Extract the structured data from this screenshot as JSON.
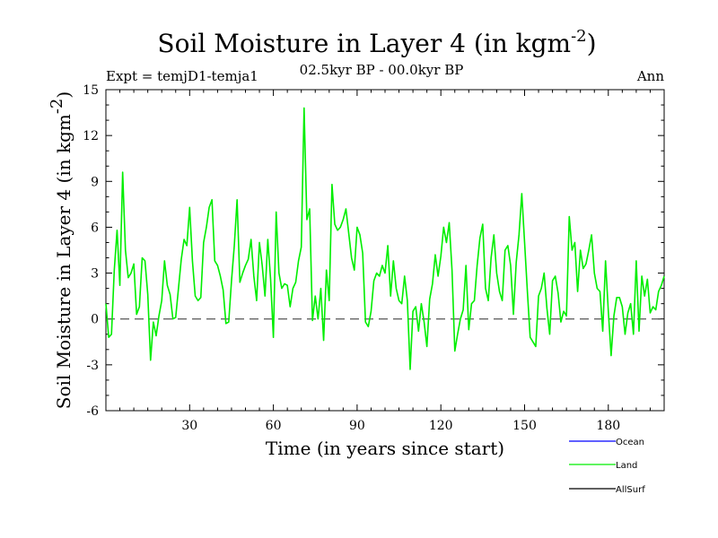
{
  "chart_data": {
    "type": "line",
    "title": "Soil Moisture in Layer 4 (in kgm",
    "title_sup": "-2",
    "title_close": ")",
    "experiment": "Expt = temjD1-temja1",
    "period": "02.5kyr BP - 00.0kyr BP",
    "season": "Ann",
    "xlabel": "Time (in years since start)",
    "ylabel": "Soil Moisture in Layer 4 (in kgm",
    "ylabel_sup": "-2",
    "ylabel_close": ")",
    "xlim": [
      0,
      200
    ],
    "ylim": [
      -6,
      15
    ],
    "xticks": [
      30,
      60,
      90,
      120,
      150,
      180
    ],
    "yticks": [
      -6,
      -3,
      0,
      3,
      6,
      9,
      12,
      15
    ],
    "zero_line": 0,
    "legend": [
      {
        "name": "Ocean",
        "color": "#0000ff"
      },
      {
        "name": "Land",
        "color": "#00ee00"
      },
      {
        "name": "AllSurf",
        "color": "#000000"
      }
    ],
    "series": [
      {
        "name": "Land",
        "color": "#00ee00",
        "x": [
          0,
          1,
          2,
          3,
          4,
          5,
          6,
          7,
          8,
          9,
          10,
          11,
          12,
          13,
          14,
          15,
          16,
          17,
          18,
          19,
          20,
          21,
          22,
          23,
          24,
          25,
          26,
          27,
          28,
          29,
          30,
          31,
          32,
          33,
          34,
          35,
          36,
          37,
          38,
          39,
          40,
          41,
          42,
          43,
          44,
          45,
          46,
          47,
          48,
          49,
          50,
          51,
          52,
          53,
          54,
          55,
          56,
          57,
          58,
          59,
          60,
          61,
          62,
          63,
          64,
          65,
          66,
          67,
          68,
          69,
          70,
          71,
          72,
          73,
          74,
          75,
          76,
          77,
          78,
          79,
          80,
          81,
          82,
          83,
          84,
          85,
          86,
          87,
          88,
          89,
          90,
          91,
          92,
          93,
          94,
          95,
          96,
          97,
          98,
          99,
          100,
          101,
          102,
          103,
          104,
          105,
          106,
          107,
          108,
          109,
          110,
          111,
          112,
          113,
          114,
          115,
          116,
          117,
          118,
          119,
          120,
          121,
          122,
          123,
          124,
          125,
          126,
          127,
          128,
          129,
          130,
          131,
          132,
          133,
          134,
          135,
          136,
          137,
          138,
          139,
          140,
          141,
          142,
          143,
          144,
          145,
          146,
          147,
          148,
          149,
          150,
          151,
          152,
          153,
          154,
          155,
          156,
          157,
          158,
          159,
          160,
          161,
          162,
          163,
          164,
          165,
          166,
          167,
          168,
          169,
          170,
          171,
          172,
          173,
          174,
          175,
          176,
          177,
          178,
          179,
          180,
          181,
          182,
          183,
          184,
          185,
          186,
          187,
          188,
          189,
          190,
          191,
          192,
          193,
          194,
          195,
          196,
          197,
          198,
          199,
          200
        ],
        "values": [
          1.0,
          -1.2,
          -1.0,
          3.2,
          5.8,
          2.2,
          9.6,
          4.5,
          2.7,
          3.0,
          3.6,
          0.3,
          0.8,
          4.0,
          3.8,
          1.6,
          -2.7,
          -0.2,
          -1.1,
          0.2,
          1.2,
          3.8,
          2.2,
          1.6,
          0.0,
          0.1,
          2.0,
          3.9,
          5.2,
          4.8,
          7.3,
          3.8,
          1.5,
          1.2,
          1.4,
          5.0,
          6.0,
          7.3,
          7.8,
          3.8,
          3.5,
          2.8,
          1.9,
          -0.3,
          -0.2,
          2.5,
          4.8,
          7.8,
          2.4,
          3.0,
          3.5,
          3.9,
          5.2,
          2.8,
          1.2,
          5.0,
          3.5,
          1.5,
          5.2,
          2.6,
          -1.2,
          7.0,
          3.0,
          2.0,
          2.3,
          2.2,
          0.8,
          2.0,
          2.4,
          3.8,
          4.7,
          13.8,
          6.5,
          7.2,
          -0.1,
          1.5,
          0.0,
          2.0,
          -1.4,
          3.2,
          1.2,
          8.8,
          6.2,
          5.8,
          6.0,
          6.5,
          7.2,
          5.6,
          4.0,
          3.2,
          6.0,
          5.5,
          4.3,
          -0.2,
          -0.5,
          0.5,
          2.5,
          3.0,
          2.8,
          3.5,
          3.0,
          4.8,
          1.5,
          3.8,
          2.0,
          1.2,
          1.0,
          2.8,
          1.2,
          -3.3,
          0.5,
          0.8,
          -0.8,
          1.0,
          -0.2,
          -1.8,
          1.3,
          2.3,
          4.2,
          2.8,
          4.1,
          6.0,
          5.0,
          6.3,
          3.2,
          -2.1,
          -1.0,
          0.0,
          0.6,
          3.5,
          -0.7,
          1.0,
          1.2,
          3.5,
          5.3,
          6.2,
          2.0,
          1.2,
          4.0,
          5.5,
          3.0,
          1.8,
          1.2,
          4.5,
          4.8,
          3.5,
          0.3,
          3.7,
          5.5,
          8.2,
          5.0,
          1.8,
          -1.2,
          -1.5,
          -1.8,
          1.5,
          2.0,
          3.0,
          0.7,
          -1.0,
          2.5,
          2.8,
          1.7,
          -0.2,
          0.5,
          0.2,
          6.7,
          4.5,
          5.0,
          1.8,
          4.5,
          3.3,
          3.6,
          4.5,
          5.5,
          3.0,
          2.0,
          1.8,
          -0.8,
          3.8,
          0.5,
          -2.4,
          0.2,
          1.4,
          1.4,
          0.8,
          -1.0,
          0.4,
          1.0,
          -1.0,
          3.8,
          -0.8,
          2.8,
          1.5,
          2.6,
          0.4,
          0.8,
          0.6,
          1.8,
          2.2,
          2.8
        ]
      }
    ]
  }
}
